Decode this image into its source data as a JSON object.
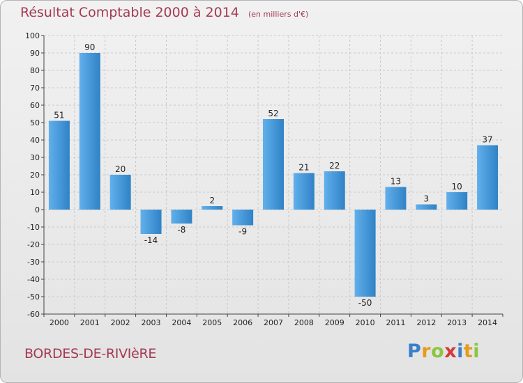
{
  "title": "Résultat Comptable 2000 à 2014",
  "subtitle": "(en milliers d'€)",
  "commune": "BORDES-DE-RIVIèRE",
  "logo": {
    "letters": [
      "P",
      "r",
      "o",
      "x",
      "i",
      "t",
      "i"
    ],
    "colors": [
      "#3a7fc8",
      "#e89a1c",
      "#8cc63e",
      "#d6393b",
      "#3a7fc8",
      "#e89a1c",
      "#8cc63e"
    ]
  },
  "chart_data": {
    "type": "bar",
    "categories": [
      "2000",
      "2001",
      "2002",
      "2003",
      "2004",
      "2005",
      "2006",
      "2007",
      "2008",
      "2009",
      "2010",
      "2011",
      "2012",
      "2013",
      "2014"
    ],
    "values": [
      51,
      90,
      20,
      -14,
      -8,
      2,
      -9,
      52,
      21,
      22,
      -50,
      13,
      3,
      10,
      37
    ],
    "ylim": [
      -60,
      100
    ],
    "yticks": [
      -60,
      -50,
      -40,
      -30,
      -20,
      -10,
      0,
      10,
      20,
      30,
      40,
      50,
      60,
      70,
      80,
      90,
      100
    ],
    "grid": true,
    "bar_color": "#3d8fd0"
  }
}
